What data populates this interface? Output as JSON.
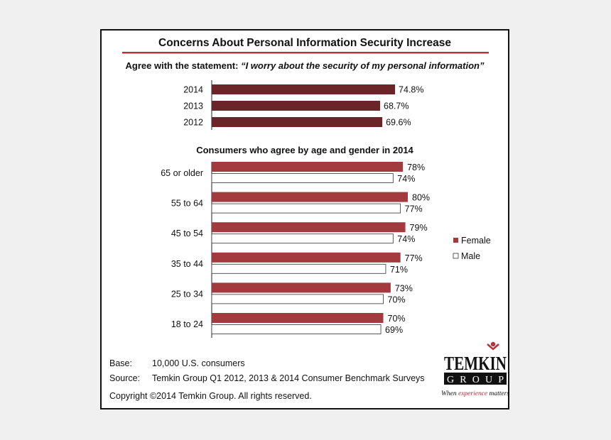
{
  "colors": {
    "year_bar": "#6b2428",
    "female": "#a33a3d",
    "male": "#ffffff",
    "rule": "#b8323a",
    "axis": "#222222"
  },
  "chart_data": [
    {
      "type": "bar",
      "orientation": "horizontal",
      "title": "Concerns About Personal Information Security Increase",
      "subtitle_prefix": "Agree with the statement: ",
      "subtitle_quote": "“I worry about the security of my personal information”",
      "categories": [
        "2014",
        "2013",
        "2012"
      ],
      "values": [
        74.8,
        68.7,
        69.6
      ],
      "value_labels": [
        "74.8%",
        "68.7%",
        "69.6%"
      ],
      "unit": "%",
      "xlim": [
        0,
        100
      ],
      "grid": false
    },
    {
      "type": "bar",
      "orientation": "horizontal",
      "title": "Consumers who agree by age and gender in 2014",
      "categories": [
        "65 or older",
        "55 to 64",
        "45 to 54",
        "35 to 44",
        "25 to 34",
        "18 to 24"
      ],
      "series": [
        {
          "name": "Female",
          "values": [
            78,
            80,
            79,
            77,
            73,
            70
          ],
          "labels": [
            "78%",
            "80%",
            "79%",
            "77%",
            "73%",
            "70%"
          ]
        },
        {
          "name": "Male",
          "values": [
            74,
            77,
            74,
            71,
            70,
            69
          ],
          "labels": [
            "74%",
            "77%",
            "74%",
            "71%",
            "70%",
            "69%"
          ]
        }
      ],
      "unit": "%",
      "xlim": [
        0,
        100
      ],
      "legend_position": "right",
      "grid": false
    }
  ],
  "footer": {
    "base_label": "Base:",
    "base_value": "10,000 U.S. consumers",
    "source_label": "Source:",
    "source_value": "Temkin Group Q1 2012, 2013 & 2014 Consumer Benchmark Surveys",
    "copyright": "Copyright ©2014 Temkin Group. All rights reserved."
  },
  "logo": {
    "word_top": "TEMKIN",
    "word_bottom": "GROUP",
    "tagline_1": "When ",
    "tagline_2": "experience",
    "tagline_3": " matters"
  }
}
